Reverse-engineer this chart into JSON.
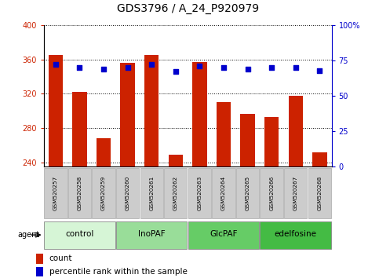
{
  "title": "GDS3796 / A_24_P920979",
  "samples": [
    "GSM520257",
    "GSM520258",
    "GSM520259",
    "GSM520260",
    "GSM520261",
    "GSM520262",
    "GSM520263",
    "GSM520264",
    "GSM520265",
    "GSM520266",
    "GSM520267",
    "GSM520268"
  ],
  "bar_values": [
    365,
    322,
    268,
    356,
    365,
    249,
    357,
    310,
    297,
    293,
    318,
    252
  ],
  "percentile_values": [
    72,
    70,
    69,
    70,
    72,
    67,
    71,
    70,
    69,
    70,
    70,
    68
  ],
  "bar_color": "#cc2200",
  "dot_color": "#0000cc",
  "ymin": 235,
  "ymax": 400,
  "yticks": [
    240,
    280,
    320,
    360,
    400
  ],
  "y2min": 0,
  "y2max": 100,
  "y2ticks": [
    0,
    25,
    50,
    75,
    100
  ],
  "y2ticklabels": [
    "0",
    "25",
    "50",
    "75",
    "100%"
  ],
  "groups": [
    {
      "label": "control",
      "start": 0,
      "end": 2,
      "color": "#d6f5d6"
    },
    {
      "label": "InoPAF",
      "start": 3,
      "end": 5,
      "color": "#99dd99"
    },
    {
      "label": "GlcPAF",
      "start": 6,
      "end": 8,
      "color": "#66cc66"
    },
    {
      "label": "edelfosine",
      "start": 9,
      "end": 11,
      "color": "#44bb44"
    }
  ],
  "agent_label": "agent",
  "legend_count_label": "count",
  "legend_pct_label": "percentile rank within the sample",
  "title_fontsize": 10,
  "axis_label_color_left": "#cc2200",
  "axis_label_color_right": "#0000cc",
  "tick_label_fontsize": 7,
  "bar_width": 0.6,
  "sample_box_color": "#cccccc",
  "sample_box_edge": "#aaaaaa"
}
